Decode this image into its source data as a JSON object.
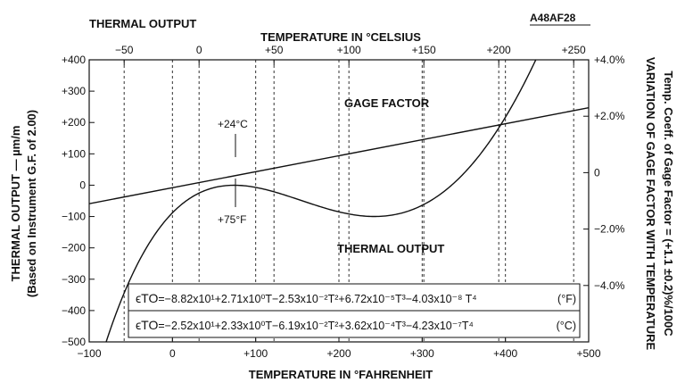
{
  "chart_data": {
    "type": "line",
    "title": "THERMAL OUTPUT",
    "figure_id": "A48AF28",
    "x_bottom": {
      "label": "TEMPERATURE IN °FAHRENHEIT",
      "range": [
        -100,
        500
      ],
      "ticks": [
        -100,
        0,
        100,
        200,
        300,
        400,
        500
      ],
      "tick_labels": [
        "−100",
        "0",
        "+100",
        "+200",
        "+300",
        "+400",
        "+500"
      ]
    },
    "x_top": {
      "label": "TEMPERATURE IN °CELSIUS",
      "ticks": [
        -50,
        0,
        50,
        100,
        150,
        200,
        250
      ],
      "tick_labels": [
        "−50",
        "0",
        "+50",
        "+100",
        "+150",
        "+200",
        "+250"
      ]
    },
    "y_left": {
      "label": "THERMAL OUTPUT — µm/m",
      "sublabel": "(Based on Instrument G.F. of 2.00)",
      "range": [
        -500,
        400
      ],
      "ticks": [
        400,
        300,
        200,
        100,
        0,
        -100,
        -200,
        -300,
        -400,
        -500
      ],
      "tick_labels": [
        "+400",
        "+300",
        "+200",
        "+100",
        "0",
        "−100",
        "−200",
        "−300",
        "−400",
        "−500"
      ]
    },
    "y_right": {
      "label_1": "VARIATION OF GAGE FACTOR WITH TEMPERATURE",
      "label_2": "Temp. Coeff. of Gage Factor = (+1.1 ±0.2)%/100C",
      "range": [
        -6.0,
        4.0
      ],
      "ticks": [
        4.0,
        2.0,
        0,
        -2.0,
        -4.0
      ],
      "tick_labels": [
        "+4.0%",
        "+2.0%",
        "0",
        "−2.0%",
        "−4.0%"
      ]
    },
    "grid": true,
    "grid_style": "dashed vertical lines at Fahrenheit and Celsius ticks",
    "series": [
      {
        "name": "THERMAL OUTPUT",
        "axis": "left",
        "equation_F": {
          "symbol": "ϵTO",
          "text": "=−8.82x10¹+2.71x10⁰T−2.53x10⁻²T²+6.72x10⁻⁵T³−4.03x10⁻⁸ T⁴",
          "unit": "(°F)",
          "coefficients": [
            -88.2,
            2.71,
            -0.0253,
            6.72e-05,
            -4.03e-08
          ]
        },
        "equation_C": {
          "symbol": "ϵTO",
          "text": "=−2.52x10¹+2.33x10⁰T−6.19x10⁻²T²+3.62x10⁻⁴T³−4.23x10⁻⁷T⁴",
          "unit": "(°C)"
        }
      },
      {
        "name": "GAGE FACTOR",
        "axis": "right",
        "points": [
          [
            -100,
            -1.1
          ],
          [
            500,
            2.3
          ]
        ]
      }
    ],
    "annotations": [
      {
        "text": "+24°C",
        "x": 75,
        "y": 0
      },
      {
        "text": "+75°F",
        "x": 75,
        "y": 0
      }
    ]
  }
}
